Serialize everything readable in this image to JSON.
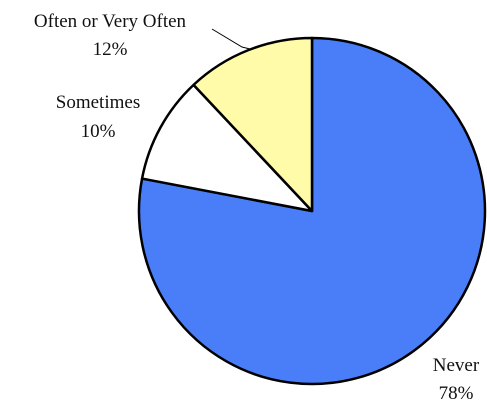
{
  "chart_data": {
    "type": "pie",
    "title": "",
    "slices": [
      {
        "label": "Never",
        "value": 78,
        "value_label": "78%",
        "color": "#4A7EF8"
      },
      {
        "label": "Sometimes",
        "value": 10,
        "value_label": "10%",
        "color": "#FFFFFF"
      },
      {
        "label": "Often or Very Often",
        "value": 12,
        "value_label": "12%",
        "color": "#FFFBA8"
      }
    ],
    "start_angle": "12 o'clock",
    "direction": "clockwise",
    "legend": "none"
  }
}
